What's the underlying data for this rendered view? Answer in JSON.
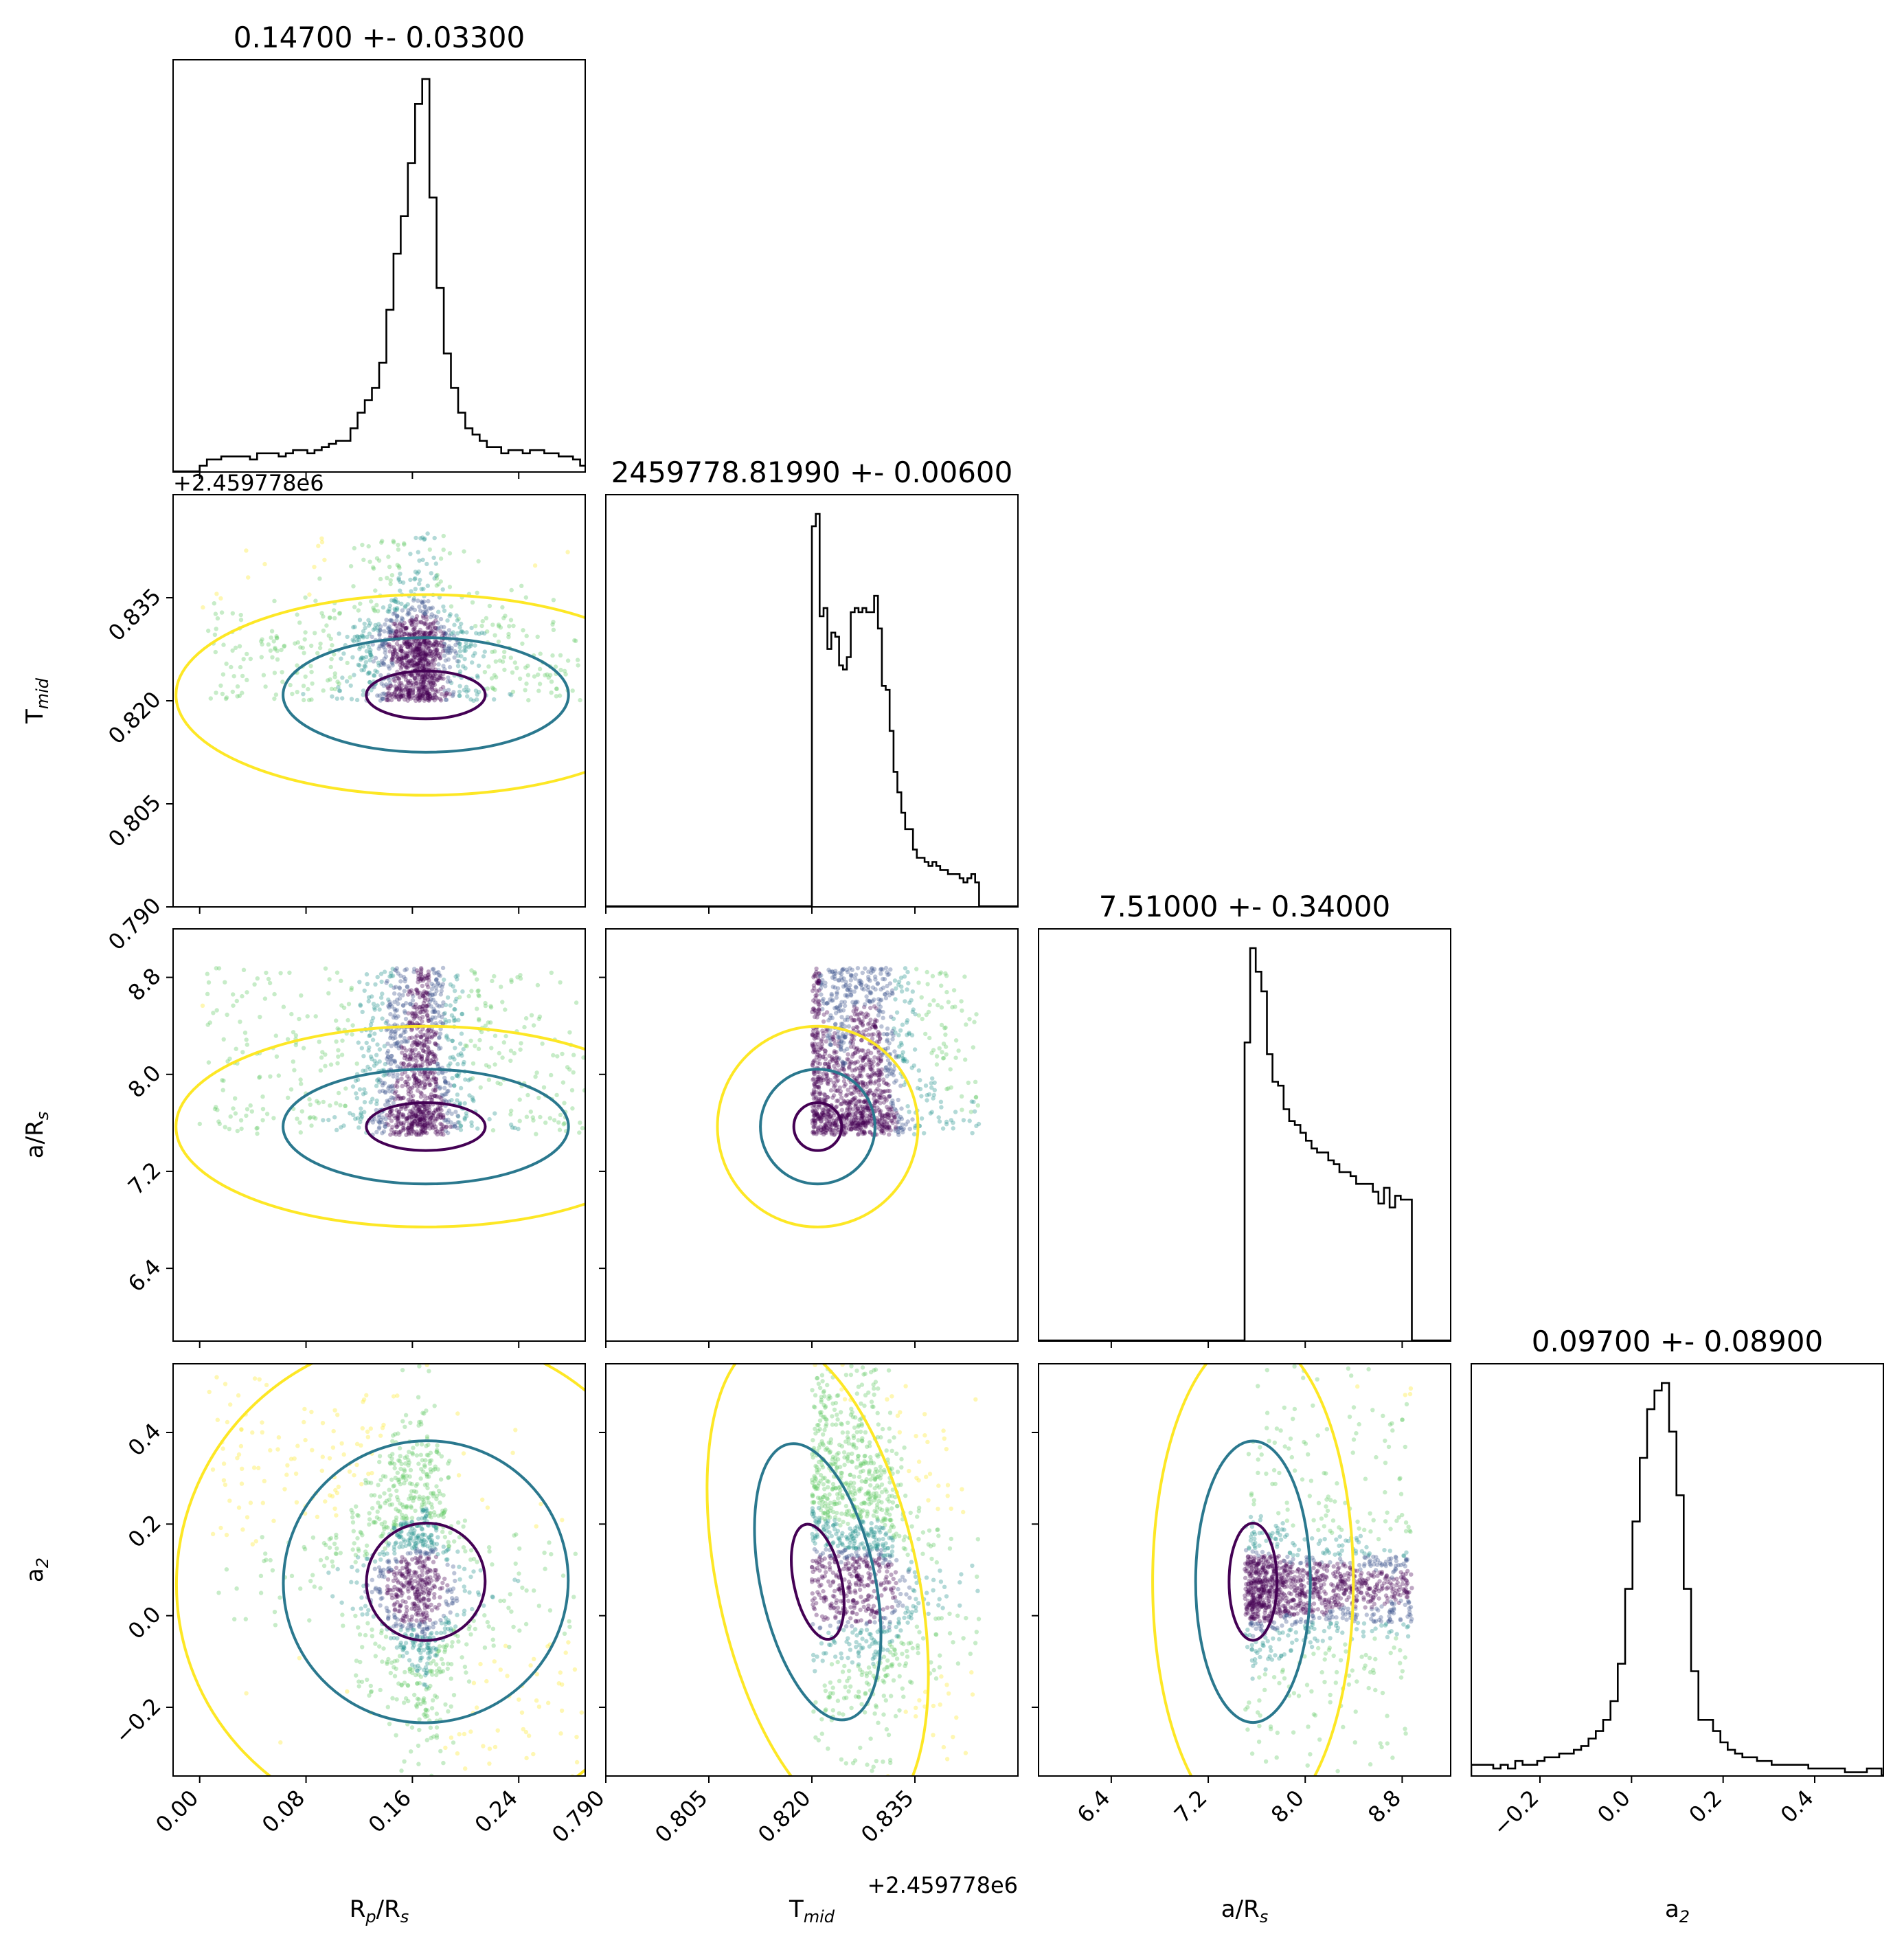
{
  "chart_data": {
    "type": "corner",
    "parameters": [
      {
        "key": "rp_rs",
        "axis_label": "R",
        "axis_sub": "p",
        "axis_tail": "/R",
        "axis_tail_sub": "s",
        "range": [
          -0.02,
          0.29
        ],
        "ticks": [
          "0.00",
          "0.08",
          "0.16",
          "0.24"
        ],
        "tick_values": [
          0.0,
          0.08,
          0.16,
          0.24
        ],
        "title": "0.14700 +- 0.03300",
        "offset": ""
      },
      {
        "key": "tmid",
        "axis_label": "T",
        "axis_sub": "mid",
        "axis_tail": "",
        "axis_tail_sub": "",
        "range": [
          0.79,
          0.85
        ],
        "ticks": [
          "0.790",
          "0.805",
          "0.820",
          "0.835"
        ],
        "tick_values": [
          0.79,
          0.805,
          0.82,
          0.835
        ],
        "title": "2459778.81990 +- 0.00600",
        "offset": "+2.459778e6"
      },
      {
        "key": "a_rs",
        "axis_label": "a/R",
        "axis_sub": "s",
        "axis_tail": "",
        "axis_tail_sub": "",
        "range": [
          5.8,
          9.2
        ],
        "ticks": [
          "6.4",
          "7.2",
          "8.0",
          "8.8"
        ],
        "tick_values": [
          6.4,
          7.2,
          8.0,
          8.8
        ],
        "title": "7.51000 +- 0.34000",
        "offset": ""
      },
      {
        "key": "a2",
        "axis_label": "a",
        "axis_sub": "2",
        "axis_tail": "",
        "axis_tail_sub": "",
        "range": [
          -0.35,
          0.55
        ],
        "ticks": [
          "−0.2",
          "0.0",
          "0.2",
          "0.4"
        ],
        "tick_values": [
          -0.2,
          0.0,
          0.2,
          0.4
        ],
        "title": "0.09700 +- 0.08900",
        "offset": ""
      }
    ],
    "marginals": {
      "rp_rs": {
        "edges_start": 0.0,
        "bin_width": 0.0054,
        "counts": [
          2,
          4,
          4,
          5,
          5,
          5,
          5,
          4,
          6,
          6,
          6,
          5,
          6,
          7,
          7,
          6,
          7,
          8,
          9,
          10,
          10,
          14,
          19,
          23,
          27,
          35,
          52,
          70,
          82,
          99,
          118,
          126,
          88,
          59,
          38,
          27,
          19,
          14,
          12,
          10,
          8,
          8,
          6,
          7,
          7,
          6,
          7,
          7,
          6,
          6,
          5,
          5,
          4,
          2,
          2,
          1,
          1,
          1
        ]
      },
      "tmid": {
        "edges_start": 0.82,
        "bin_width": 0.000566,
        "counts": [
          93,
          96,
          71,
          73,
          63,
          67,
          66,
          59,
          58,
          61,
          72,
          73,
          72,
          73,
          72,
          72,
          76,
          68,
          54,
          53,
          43,
          33,
          28,
          23,
          19,
          19,
          14,
          12,
          12,
          11,
          10,
          11,
          10,
          9,
          9,
          8,
          8,
          8,
          7,
          6,
          7,
          8,
          6
        ]
      },
      "a_rs": {
        "edges_start": 7.5,
        "bin_width": 0.046,
        "counts": [
          76,
          100,
          94,
          89,
          73,
          66,
          65,
          59,
          56,
          55,
          53,
          51,
          49,
          48,
          48,
          46,
          45,
          43,
          43,
          42,
          40,
          40,
          40,
          38,
          35,
          39,
          34,
          37,
          36,
          36
        ]
      },
      "a2": {
        "edges_start": -0.35,
        "bin_width": 0.016,
        "counts": [
          3,
          3,
          3,
          2,
          3,
          2,
          4,
          3,
          3,
          4,
          5,
          5,
          6,
          6,
          7,
          8,
          10,
          12,
          15,
          20,
          30,
          50,
          68,
          85,
          98,
          103,
          105,
          92,
          75,
          50,
          28,
          15,
          15,
          12,
          9,
          7,
          6,
          5,
          5,
          4,
          4,
          3,
          3,
          3,
          3,
          3,
          2,
          2,
          2,
          2,
          2,
          1,
          1,
          1,
          2,
          2
        ]
      }
    },
    "correlations": {
      "rp_rs|a2": -0.55,
      "tmid|a2": -0.3,
      "rp_rs|tmid": 0.0,
      "rp_rs|a_rs": 0.0,
      "tmid|a_rs": 0.0,
      "a_rs|a2": 0.0
    },
    "scatter_colormap": [
      "#440154",
      "#3b528b",
      "#21918c",
      "#5ec962",
      "#fde725"
    ],
    "contour_colors": {
      "inner": "#440154",
      "middle": "#2a788e",
      "outer": "#fde725"
    },
    "histogram_color": "#000000"
  }
}
